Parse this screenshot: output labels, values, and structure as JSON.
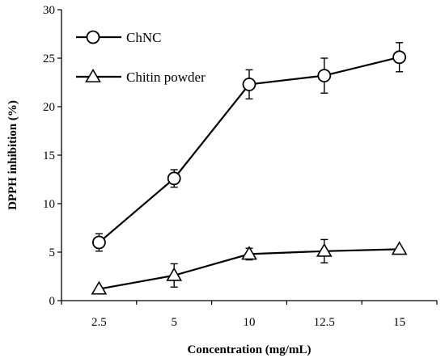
{
  "chart_data": {
    "type": "line",
    "title": "",
    "xlabel": "Concentration (mg/mL)",
    "ylabel": "DPPH inhibition (%)",
    "categories": [
      "2.5",
      "5",
      "10",
      "12.5",
      "15"
    ],
    "ylim": [
      0,
      30
    ],
    "yticks": [
      "0",
      "5",
      "10",
      "15",
      "20",
      "25",
      "30"
    ],
    "grid": false,
    "legend_position": "top-left",
    "series": [
      {
        "name": "ChNC",
        "marker": "circle",
        "values": [
          6.0,
          12.6,
          22.3,
          23.2,
          25.1
        ],
        "errors": [
          0.9,
          0.9,
          1.5,
          1.8,
          1.5
        ]
      },
      {
        "name": "Chitin powder",
        "marker": "triangle",
        "values": [
          1.2,
          2.6,
          4.8,
          5.1,
          5.3
        ],
        "errors": [
          0.0,
          1.2,
          0.6,
          1.2,
          0.0
        ]
      }
    ],
    "colors": {
      "line": "#000000",
      "marker_fill": "#ffffff"
    }
  }
}
